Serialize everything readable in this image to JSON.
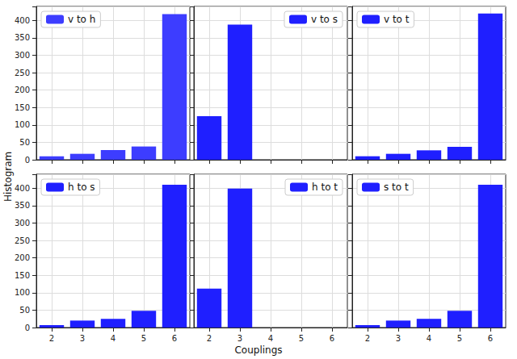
{
  "xlabel": "Couplings",
  "ylabel": "Histogram",
  "chart_data": [
    {
      "type": "bar",
      "categories": [
        2,
        3,
        4,
        5,
        6
      ],
      "series": [
        {
          "name": "v to h",
          "color": "#3d3dff",
          "values": [
            10,
            17,
            28,
            38,
            418
          ]
        }
      ],
      "ylim": [
        0,
        440
      ],
      "yticks": [
        0,
        50,
        100,
        150,
        200,
        250,
        300,
        350,
        400
      ],
      "grid": true,
      "legend": "upper left",
      "tick_labels": "y"
    },
    {
      "type": "bar",
      "categories": [
        2,
        3,
        4,
        5,
        6
      ],
      "series": [
        {
          "name": "v to s",
          "color": "#1f1fff",
          "values": [
            125,
            388,
            0,
            0,
            0
          ]
        }
      ],
      "ylim": [
        0,
        440
      ],
      "yticks": [
        0,
        50,
        100,
        150,
        200,
        250,
        300,
        350,
        400
      ],
      "grid": true,
      "legend": "upper right",
      "tick_labels": false
    },
    {
      "type": "bar",
      "categories": [
        2,
        3,
        4,
        5,
        6
      ],
      "series": [
        {
          "name": "v to t",
          "color": "#1f1fff",
          "values": [
            10,
            17,
            27,
            37,
            420
          ]
        }
      ],
      "ylim": [
        0,
        440
      ],
      "yticks": [
        0,
        50,
        100,
        150,
        200,
        250,
        300,
        350,
        400
      ],
      "grid": true,
      "legend": "upper left",
      "tick_labels": false
    },
    {
      "type": "bar",
      "categories": [
        2,
        3,
        4,
        5,
        6
      ],
      "series": [
        {
          "name": "h to s",
          "color": "#1f1fff",
          "values": [
            7,
            20,
            25,
            48,
            410
          ]
        }
      ],
      "ylim": [
        0,
        440
      ],
      "yticks": [
        0,
        50,
        100,
        150,
        200,
        250,
        300,
        350,
        400
      ],
      "grid": true,
      "legend": "upper left",
      "tick_labels": true
    },
    {
      "type": "bar",
      "categories": [
        2,
        3,
        4,
        5,
        6
      ],
      "series": [
        {
          "name": "h to t",
          "color": "#1f1fff",
          "values": [
            112,
            399,
            0,
            0,
            0
          ]
        }
      ],
      "ylim": [
        0,
        440
      ],
      "yticks": [
        0,
        50,
        100,
        150,
        200,
        250,
        300,
        350,
        400
      ],
      "grid": true,
      "legend": "upper right",
      "tick_labels": "x"
    },
    {
      "type": "bar",
      "categories": [
        2,
        3,
        4,
        5,
        6
      ],
      "series": [
        {
          "name": "s to t",
          "color": "#1f1fff",
          "values": [
            7,
            20,
            25,
            48,
            410
          ]
        }
      ],
      "ylim": [
        0,
        440
      ],
      "yticks": [
        0,
        50,
        100,
        150,
        200,
        250,
        300,
        350,
        400
      ],
      "grid": true,
      "legend": "upper left",
      "tick_labels": "x"
    }
  ]
}
